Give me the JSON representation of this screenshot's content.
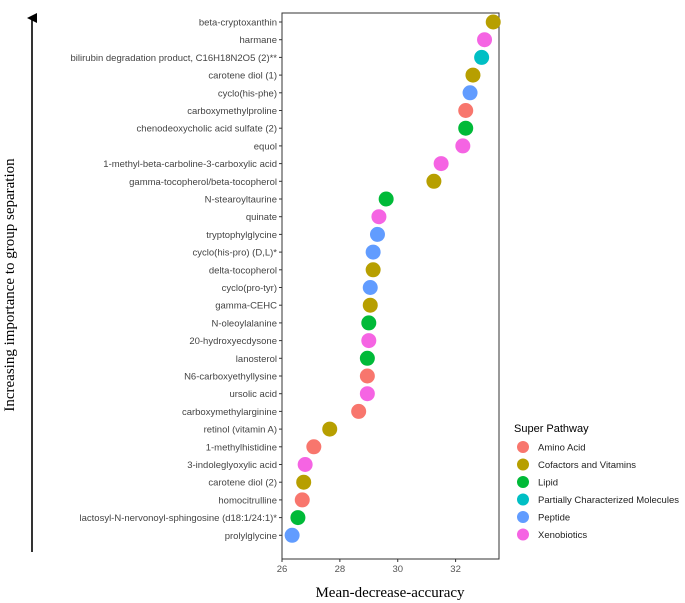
{
  "chart_data": {
    "type": "scatter",
    "xlabel": "Mean-decrease-accuracy",
    "ylabel": "Increasing importance to group separation",
    "xlim": [
      26,
      33.5
    ],
    "xticks": [
      26,
      28,
      30,
      32
    ],
    "legend_title": "Super Pathway",
    "legend_position": "right",
    "pathways": [
      {
        "name": "Amino Acid",
        "color": "#F8766D"
      },
      {
        "name": "Cofactors and Vitamins",
        "color": "#B79F00"
      },
      {
        "name": "Lipid",
        "color": "#00BA38"
      },
      {
        "name": "Partially Characterized Molecules",
        "color": "#00BFC4"
      },
      {
        "name": "Peptide",
        "color": "#619CFF"
      },
      {
        "name": "Xenobiotics",
        "color": "#F564E3"
      }
    ],
    "points": [
      {
        "label": "beta-cryptoxanthin",
        "x": 33.3,
        "pathway": 1
      },
      {
        "label": "harmane",
        "x": 33.0,
        "pathway": 5
      },
      {
        "label": "bilirubin degradation product, C16H18N2O5 (2)**",
        "x": 32.9,
        "pathway": 3
      },
      {
        "label": "carotene diol (1)",
        "x": 32.6,
        "pathway": 1
      },
      {
        "label": "cyclo(his-phe)",
        "x": 32.5,
        "pathway": 4
      },
      {
        "label": "carboxymethylproline",
        "x": 32.35,
        "pathway": 0
      },
      {
        "label": "chenodeoxycholic acid sulfate (2)",
        "x": 32.35,
        "pathway": 2
      },
      {
        "label": "equol",
        "x": 32.25,
        "pathway": 5
      },
      {
        "label": "1-methyl-beta-carboline-3-carboxylic acid",
        "x": 31.5,
        "pathway": 5
      },
      {
        "label": "gamma-tocopherol/beta-tocopherol",
        "x": 31.25,
        "pathway": 1
      },
      {
        "label": "N-stearoyltaurine",
        "x": 29.6,
        "pathway": 2
      },
      {
        "label": "quinate",
        "x": 29.35,
        "pathway": 5
      },
      {
        "label": "tryptophylglycine",
        "x": 29.3,
        "pathway": 4
      },
      {
        "label": "cyclo(his-pro) (D,L)*",
        "x": 29.15,
        "pathway": 4
      },
      {
        "label": "delta-tocopherol",
        "x": 29.15,
        "pathway": 1
      },
      {
        "label": "cyclo(pro-tyr)",
        "x": 29.05,
        "pathway": 4
      },
      {
        "label": "gamma-CEHC",
        "x": 29.05,
        "pathway": 1
      },
      {
        "label": "N-oleoylalanine",
        "x": 29.0,
        "pathway": 2
      },
      {
        "label": "20-hydroxyecdysone",
        "x": 29.0,
        "pathway": 5
      },
      {
        "label": "lanosterol",
        "x": 28.95,
        "pathway": 2
      },
      {
        "label": "N6-carboxyethyllysine",
        "x": 28.95,
        "pathway": 0
      },
      {
        "label": "ursolic acid",
        "x": 28.95,
        "pathway": 5
      },
      {
        "label": "carboxymethylarginine",
        "x": 28.65,
        "pathway": 0
      },
      {
        "label": "retinol (vitamin A)",
        "x": 27.65,
        "pathway": 1
      },
      {
        "label": "1-methylhistidine",
        "x": 27.1,
        "pathway": 0
      },
      {
        "label": "3-indoleglyoxylic acid",
        "x": 26.8,
        "pathway": 5
      },
      {
        "label": "carotene diol (2)",
        "x": 26.75,
        "pathway": 1
      },
      {
        "label": "homocitrulline",
        "x": 26.7,
        "pathway": 0
      },
      {
        "label": "lactosyl-N-nervonoyl-sphingosine (d18:1/24:1)*",
        "x": 26.55,
        "pathway": 2
      },
      {
        "label": "prolylglycine",
        "x": 26.35,
        "pathway": 4
      }
    ]
  }
}
